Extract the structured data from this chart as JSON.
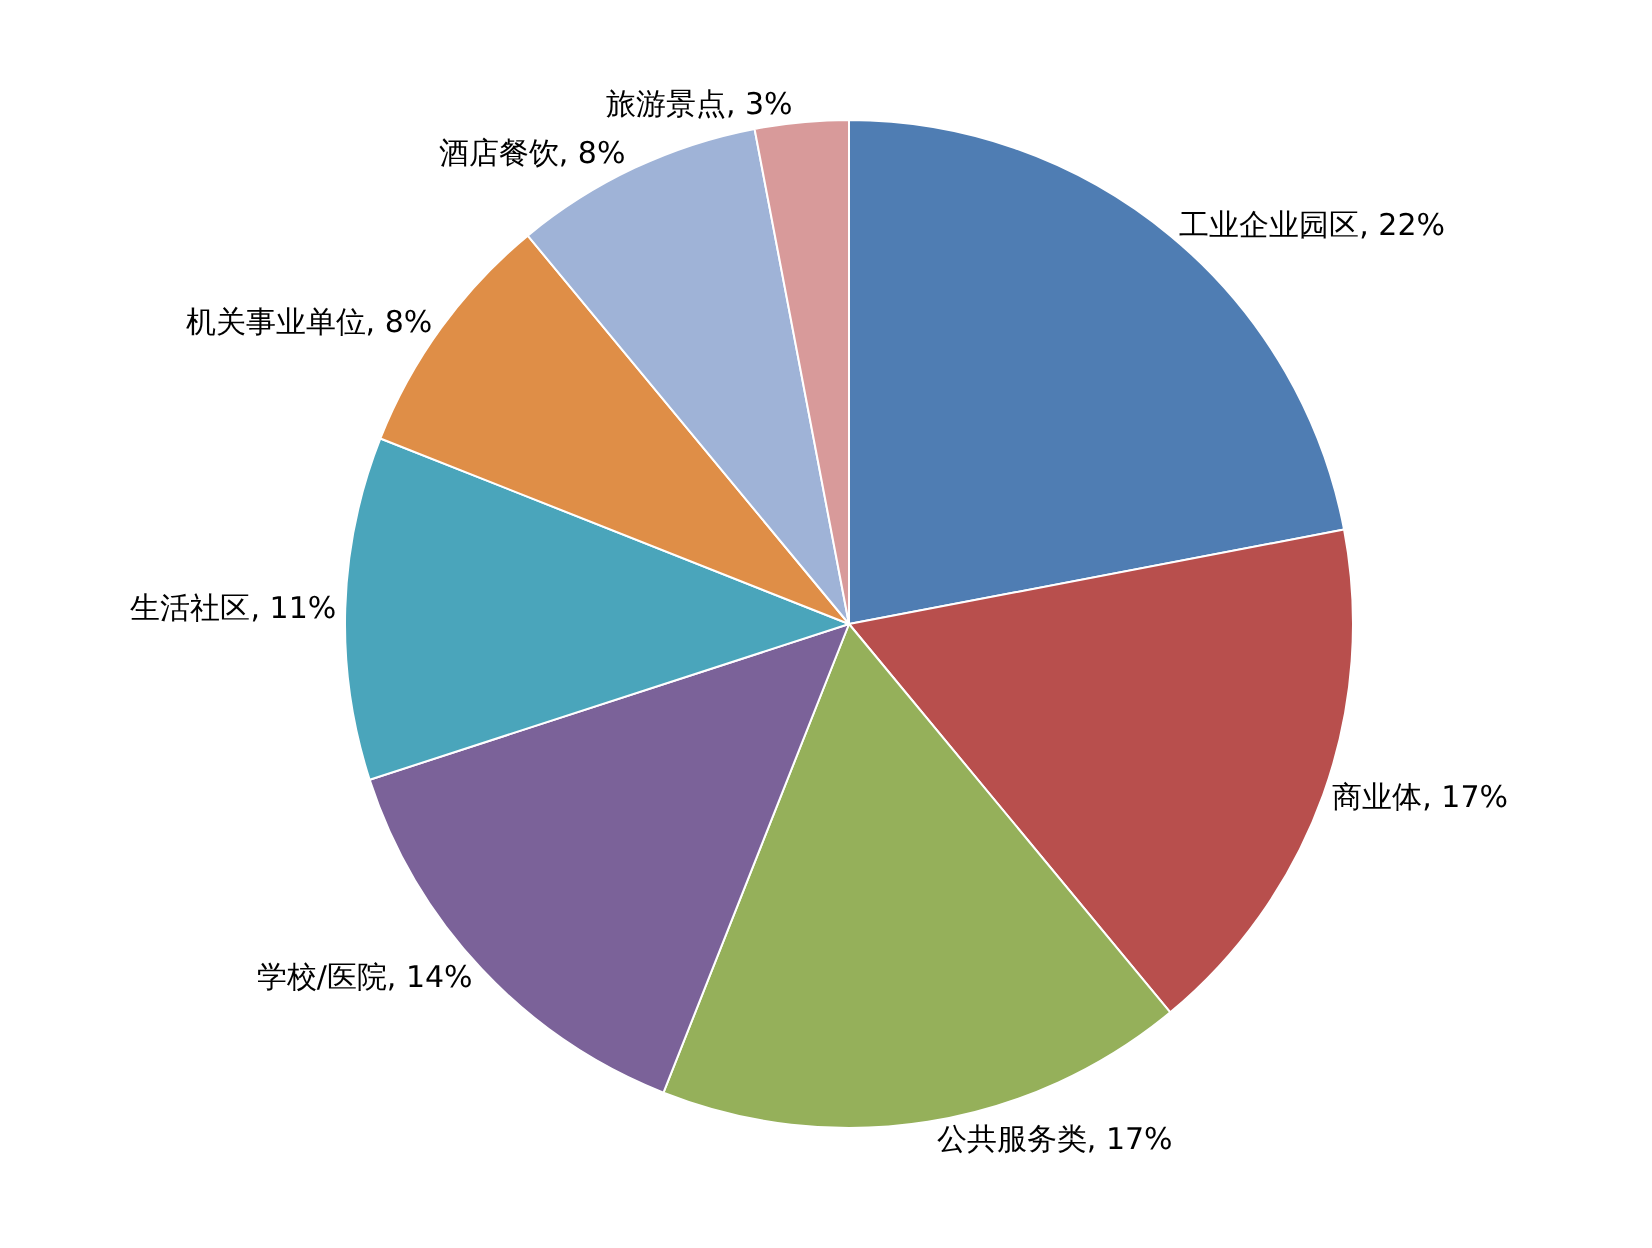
{
  "chart_data": {
    "type": "pie",
    "categories": [
      "工业企业园区",
      "商业体",
      "公共服务类",
      "学校/医院",
      "生活社区",
      "机关事业单位",
      "酒店餐饮",
      "旅游景点"
    ],
    "values": [
      22,
      17,
      17,
      14,
      11,
      8,
      8,
      3
    ],
    "value_labels": [
      "22%",
      "17%",
      "17%",
      "14%",
      "11%",
      "8%",
      "8%",
      "3%"
    ],
    "colors": [
      "#4f7db3",
      "#b84f4d",
      "#95b05a",
      "#7b6299",
      "#4aa5bb",
      "#df8e47",
      "#9fb3d7",
      "#d89a9a"
    ],
    "legend": false
  }
}
